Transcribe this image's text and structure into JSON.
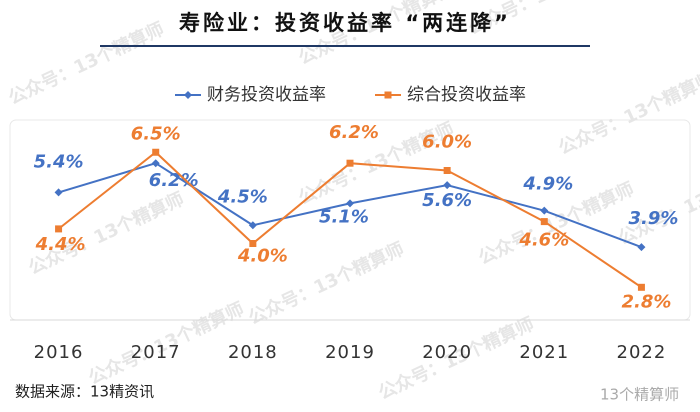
{
  "chart_data": {
    "type": "line",
    "title": "寿险业：投资收益率 “两连降”",
    "categories": [
      "2016",
      "2017",
      "2018",
      "2019",
      "2020",
      "2021",
      "2022"
    ],
    "series": [
      {
        "name": "财务投资收益率",
        "color": "#4472c4",
        "marker": "diamond",
        "values": [
          5.4,
          6.2,
          4.5,
          5.1,
          5.6,
          4.9,
          3.9
        ],
        "value_labels": [
          "5.4%",
          "6.2%",
          "4.5%",
          "5.1%",
          "5.6%",
          "4.9%",
          "3.9%"
        ]
      },
      {
        "name": "综合投资收益率",
        "color": "#ed7d31",
        "marker": "square",
        "values": [
          4.4,
          6.5,
          4.0,
          6.2,
          6.0,
          4.6,
          2.8
        ],
        "value_labels": [
          "4.4%",
          "6.5%",
          "4.0%",
          "6.2%",
          "6.0%",
          "4.6%",
          "2.8%"
        ]
      }
    ],
    "ylim": [
      2,
      7
    ],
    "legend": "top",
    "source": "数据来源：13精资讯",
    "watermark": "公众号：13个精算师",
    "logo": "13个精算师"
  }
}
